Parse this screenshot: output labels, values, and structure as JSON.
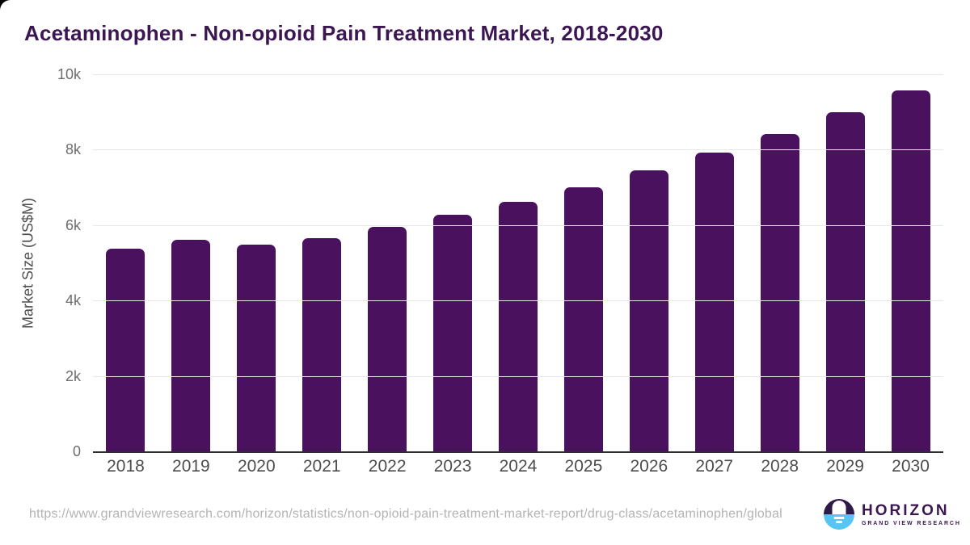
{
  "chart_data": {
    "type": "bar",
    "title": "Acetaminophen - Non-opioid Pain Treatment Market, 2018-2030",
    "xlabel": "",
    "ylabel": "Market Size (US$M)",
    "categories": [
      "2018",
      "2019",
      "2020",
      "2021",
      "2022",
      "2023",
      "2024",
      "2025",
      "2026",
      "2027",
      "2028",
      "2029",
      "2030"
    ],
    "values": [
      5375,
      5600,
      5475,
      5645,
      5960,
      6270,
      6620,
      7010,
      7445,
      7920,
      8415,
      8985,
      9580
    ],
    "ylim": [
      0,
      10000
    ],
    "yticks": [
      {
        "value": 0,
        "label": "0"
      },
      {
        "value": 2000,
        "label": "2k"
      },
      {
        "value": 4000,
        "label": "4k"
      },
      {
        "value": 6000,
        "label": "6k"
      },
      {
        "value": 8000,
        "label": "8k"
      },
      {
        "value": 10000,
        "label": "10k"
      }
    ],
    "grid": "horizontal",
    "legend": "none",
    "bar_color": "#4a115e"
  },
  "colors": {
    "title_text": "#3b1653",
    "bar": "#4a115e",
    "axis_line": "#2e2e2e",
    "gridline": "#e8e8e8",
    "tick_text": "#6e6e6e",
    "category_text": "#4d4d4d",
    "url_text": "#b3b3b3",
    "logo_purple": "#2e1a47",
    "logo_blue": "#56c5f2"
  },
  "footer": {
    "source_url": "https://www.grandviewresearch.com/horizon/statistics/non-opioid-pain-treatment-market-report/drug-class/acetaminophen/global",
    "logo": {
      "name": "HORIZON",
      "subtitle": "GRAND VIEW RESEARCH"
    }
  }
}
